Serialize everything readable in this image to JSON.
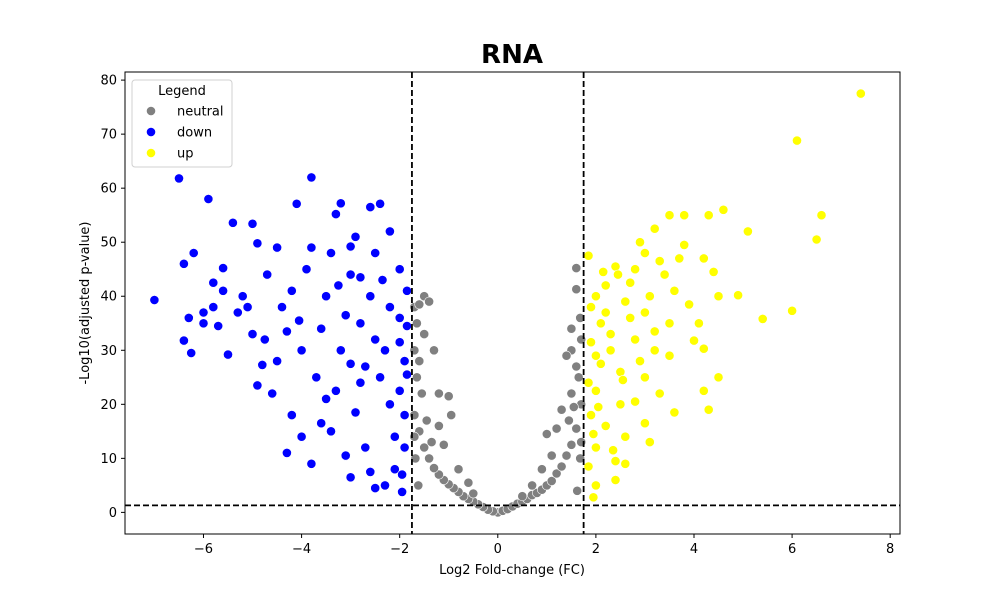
{
  "chart_data": {
    "type": "scatter",
    "title": "RNA",
    "xlabel": "Log2 Fold-change (FC)",
    "ylabel": "-Log10(adjusted p-value)",
    "xlim": [
      -7.6,
      8.2
    ],
    "ylim": [
      -4,
      81.5
    ],
    "xticks": [
      -6,
      -4,
      -2,
      0,
      2,
      4,
      6,
      8
    ],
    "yticks": [
      0,
      10,
      20,
      30,
      40,
      50,
      60,
      70,
      80
    ],
    "xtick_labels": [
      "−6",
      "−4",
      "−2",
      "0",
      "2",
      "4",
      "6",
      "8"
    ],
    "ytick_labels": [
      "0",
      "10",
      "20",
      "30",
      "40",
      "50",
      "60",
      "70",
      "80"
    ],
    "grid": false,
    "thresholds": {
      "fc_low": -1.75,
      "fc_high": 1.75,
      "p_value": 1.3
    },
    "legend": {
      "title": "Legend",
      "placement": "top-left",
      "entries": [
        {
          "label": "neutral",
          "color": "#808080"
        },
        {
          "label": "down",
          "color": "#0000ff"
        },
        {
          "label": "up",
          "color": "#ffff00"
        }
      ]
    },
    "series": [
      {
        "name": "neutral",
        "color": "#808080",
        "points": [
          [
            0,
            0
          ],
          [
            -0.1,
            0.2
          ],
          [
            0.1,
            0.3
          ],
          [
            -0.2,
            0.5
          ],
          [
            0.2,
            0.6
          ],
          [
            -0.3,
            1.0
          ],
          [
            0.3,
            1.1
          ],
          [
            -0.4,
            1.5
          ],
          [
            0.4,
            1.6
          ],
          [
            -0.5,
            2.0
          ],
          [
            0.5,
            2.0
          ],
          [
            -0.6,
            2.5
          ],
          [
            0.6,
            2.5
          ],
          [
            -0.7,
            3.0
          ],
          [
            0.7,
            3.2
          ],
          [
            -0.8,
            3.8
          ],
          [
            0.8,
            3.6
          ],
          [
            -0.9,
            4.5
          ],
          [
            0.9,
            4.2
          ],
          [
            -1.0,
            5.2
          ],
          [
            1.0,
            5.0
          ],
          [
            -1.1,
            6.0
          ],
          [
            1.1,
            5.8
          ],
          [
            -1.2,
            7.0
          ],
          [
            1.2,
            7.2
          ],
          [
            -1.3,
            8.2
          ],
          [
            1.3,
            8.5
          ],
          [
            -1.4,
            10.0
          ],
          [
            1.4,
            10.5
          ],
          [
            -1.5,
            12.0
          ],
          [
            1.5,
            12.5
          ],
          [
            -1.6,
            15.0
          ],
          [
            1.6,
            15.5
          ],
          [
            -1.7,
            18.0
          ],
          [
            1.7,
            20.0
          ],
          [
            -1.65,
            25.0
          ],
          [
            1.65,
            25.0
          ],
          [
            -1.7,
            30.0
          ],
          [
            1.7,
            32.0
          ],
          [
            -1.65,
            35.0
          ],
          [
            1.68,
            36.0
          ],
          [
            -1.7,
            38.0
          ],
          [
            1.6,
            41.3
          ],
          [
            1.6,
            45.2
          ],
          [
            -1.5,
            40.0
          ],
          [
            -1.4,
            39.0
          ],
          [
            -1.2,
            22.0
          ],
          [
            -1.0,
            21.5
          ],
          [
            -0.95,
            18.0
          ],
          [
            -1.3,
            30.0
          ],
          [
            -1.5,
            33.0
          ],
          [
            -1.6,
            28.0
          ],
          [
            -1.2,
            16.0
          ],
          [
            -1.1,
            12.5
          ],
          [
            -0.8,
            8.0
          ],
          [
            -0.6,
            5.5
          ],
          [
            1.5,
            30.0
          ],
          [
            1.4,
            29.0
          ],
          [
            1.3,
            19.0
          ],
          [
            1.2,
            15.5
          ],
          [
            1.0,
            14.5
          ],
          [
            1.1,
            10.5
          ],
          [
            0.9,
            8.0
          ],
          [
            0.7,
            5.0
          ],
          [
            1.5,
            22.0
          ],
          [
            1.6,
            27.0
          ],
          [
            -1.55,
            22.0
          ],
          [
            -1.45,
            17.0
          ],
          [
            -1.35,
            13.0
          ],
          [
            1.45,
            17.0
          ],
          [
            1.55,
            19.5
          ],
          [
            0.5,
            3.0
          ],
          [
            -0.5,
            3.5
          ],
          [
            -1.68,
            10.0
          ],
          [
            1.68,
            10.0
          ],
          [
            -1.62,
            5.0
          ],
          [
            1.62,
            4.0
          ],
          [
            -1.7,
            14.0
          ],
          [
            1.7,
            13.0
          ],
          [
            -1.6,
            38.5
          ],
          [
            1.5,
            34.0
          ]
        ]
      },
      {
        "name": "down",
        "color": "#0000ff",
        "points": [
          [
            -7.0,
            39.3
          ],
          [
            -6.5,
            61.8
          ],
          [
            -6.4,
            46.0
          ],
          [
            -6.3,
            36.0
          ],
          [
            -6.2,
            48.0
          ],
          [
            -6.4,
            31.8
          ],
          [
            -6.25,
            29.5
          ],
          [
            -6.0,
            37.0
          ],
          [
            -5.9,
            58.0
          ],
          [
            -5.8,
            42.5
          ],
          [
            -5.7,
            34.5
          ],
          [
            -5.6,
            45.2
          ],
          [
            -5.4,
            53.6
          ],
          [
            -5.5,
            29.2
          ],
          [
            -5.2,
            40.0
          ],
          [
            -5.0,
            53.4
          ],
          [
            -4.9,
            49.8
          ],
          [
            -4.7,
            44.0
          ],
          [
            -4.5,
            49.0
          ],
          [
            -4.8,
            27.3
          ],
          [
            -4.3,
            33.5
          ],
          [
            -4.2,
            18.0
          ],
          [
            -4.1,
            57.1
          ],
          [
            -3.8,
            62.0
          ],
          [
            -3.8,
            9.0
          ],
          [
            -3.3,
            55.2
          ],
          [
            -3.2,
            57.2
          ],
          [
            -3.0,
            49.2
          ],
          [
            -2.8,
            43.5
          ],
          [
            -2.6,
            56.5
          ],
          [
            -2.4,
            57.1
          ],
          [
            -4.0,
            14.0
          ],
          [
            -3.5,
            21.0
          ],
          [
            -3.0,
            27.5
          ],
          [
            -2.5,
            32.0
          ],
          [
            -2.0,
            36.0
          ],
          [
            -1.9,
            28.0
          ],
          [
            -2.2,
            20.0
          ],
          [
            -2.7,
            12.0
          ],
          [
            -2.1,
            8.0
          ],
          [
            -1.95,
            3.8
          ],
          [
            -2.3,
            5.0
          ],
          [
            -2.6,
            7.5
          ],
          [
            -3.1,
            10.5
          ],
          [
            -3.4,
            15.0
          ],
          [
            -3.7,
            25.0
          ],
          [
            -4.0,
            30.0
          ],
          [
            -3.5,
            40.0
          ],
          [
            -3.0,
            44.0
          ],
          [
            -2.5,
            48.0
          ],
          [
            -2.0,
            45.0
          ],
          [
            -2.2,
            38.0
          ],
          [
            -2.8,
            35.0
          ],
          [
            -3.2,
            30.0
          ],
          [
            -3.6,
            34.0
          ],
          [
            -4.4,
            38.0
          ],
          [
            -4.6,
            22.0
          ],
          [
            -5.0,
            33.0
          ],
          [
            -5.3,
            37.0
          ],
          [
            -2.4,
            25.0
          ],
          [
            -1.9,
            18.0
          ],
          [
            -2.1,
            14.0
          ],
          [
            -2.9,
            18.5
          ],
          [
            -3.3,
            22.5
          ],
          [
            -3.9,
            45.0
          ],
          [
            -4.2,
            41.0
          ],
          [
            -2.6,
            40.0
          ],
          [
            -1.85,
            41.0
          ],
          [
            -1.9,
            12.0
          ],
          [
            -2.0,
            22.5
          ],
          [
            -3.8,
            49.0
          ],
          [
            -4.5,
            28.0
          ],
          [
            -3.1,
            36.5
          ],
          [
            -2.3,
            30.0
          ],
          [
            -2.7,
            27.0
          ],
          [
            -4.9,
            23.5
          ],
          [
            -5.1,
            38.0
          ],
          [
            -5.6,
            41.0
          ],
          [
            -6.0,
            35.0
          ],
          [
            -3.4,
            48.0
          ],
          [
            -2.9,
            51.0
          ],
          [
            -2.2,
            52.0
          ],
          [
            -3.6,
            16.5
          ],
          [
            -4.3,
            11.0
          ],
          [
            -2.5,
            4.5
          ],
          [
            -1.95,
            7.0
          ],
          [
            -3.0,
            6.5
          ],
          [
            -2.8,
            24.0
          ],
          [
            -2.0,
            31.5
          ],
          [
            -1.85,
            25.5
          ],
          [
            -1.85,
            34.5
          ],
          [
            -2.35,
            43.0
          ],
          [
            -3.25,
            42.0
          ],
          [
            -4.05,
            35.5
          ],
          [
            -4.75,
            32.0
          ],
          [
            -5.8,
            38.0
          ]
        ]
      },
      {
        "name": "up",
        "color": "#ffff00",
        "points": [
          [
            7.4,
            77.5
          ],
          [
            6.1,
            68.8
          ],
          [
            6.6,
            55.0
          ],
          [
            6.5,
            50.5
          ],
          [
            6.0,
            37.3
          ],
          [
            5.4,
            35.8
          ],
          [
            5.1,
            52.0
          ],
          [
            4.9,
            40.2
          ],
          [
            4.6,
            56.0
          ],
          [
            4.3,
            55.0
          ],
          [
            4.5,
            40.0
          ],
          [
            4.4,
            44.5
          ],
          [
            4.2,
            47.0
          ],
          [
            4.1,
            35.0
          ],
          [
            4.0,
            31.8
          ],
          [
            4.2,
            30.3
          ],
          [
            4.5,
            25.0
          ],
          [
            4.2,
            22.5
          ],
          [
            4.3,
            19.0
          ],
          [
            3.8,
            55.0
          ],
          [
            3.5,
            55.0
          ],
          [
            3.2,
            52.5
          ],
          [
            3.7,
            47.0
          ],
          [
            3.0,
            48.0
          ],
          [
            2.8,
            45.0
          ],
          [
            2.4,
            45.5
          ],
          [
            2.2,
            42.0
          ],
          [
            2.0,
            40.0
          ],
          [
            1.9,
            38.0
          ],
          [
            1.85,
            47.5
          ],
          [
            2.1,
            35.0
          ],
          [
            2.3,
            30.0
          ],
          [
            2.5,
            26.0
          ],
          [
            2.0,
            22.5
          ],
          [
            1.9,
            18.0
          ],
          [
            2.2,
            16.0
          ],
          [
            2.0,
            12.0
          ],
          [
            1.85,
            8.5
          ],
          [
            2.0,
            5.0
          ],
          [
            1.95,
            2.8
          ],
          [
            2.4,
            9.5
          ],
          [
            2.6,
            14.0
          ],
          [
            2.8,
            20.5
          ],
          [
            3.0,
            25.0
          ],
          [
            3.2,
            30.0
          ],
          [
            3.5,
            35.0
          ],
          [
            3.1,
            40.0
          ],
          [
            2.7,
            36.0
          ],
          [
            2.3,
            33.0
          ],
          [
            3.6,
            41.0
          ],
          [
            3.4,
            44.0
          ],
          [
            3.9,
            38.5
          ],
          [
            2.9,
            28.0
          ],
          [
            3.3,
            22.0
          ],
          [
            3.6,
            18.5
          ],
          [
            3.1,
            13.0
          ],
          [
            2.4,
            6.0
          ],
          [
            3.0,
            16.5
          ],
          [
            2.5,
            20.0
          ],
          [
            2.1,
            27.5
          ],
          [
            1.9,
            31.5
          ],
          [
            2.6,
            39.0
          ],
          [
            3.3,
            46.5
          ],
          [
            2.9,
            50.0
          ],
          [
            3.8,
            49.5
          ],
          [
            2.7,
            42.5
          ],
          [
            2.2,
            37.0
          ],
          [
            2.0,
            29.0
          ],
          [
            1.85,
            24.0
          ],
          [
            2.35,
            11.5
          ],
          [
            2.6,
            9.0
          ],
          [
            3.2,
            33.5
          ],
          [
            3.5,
            29.0
          ],
          [
            2.8,
            32.0
          ],
          [
            2.45,
            44.0
          ],
          [
            2.15,
            44.5
          ],
          [
            3.0,
            37.0
          ],
          [
            2.55,
            24.5
          ],
          [
            1.95,
            14.5
          ],
          [
            2.05,
            19.5
          ]
        ]
      }
    ]
  }
}
